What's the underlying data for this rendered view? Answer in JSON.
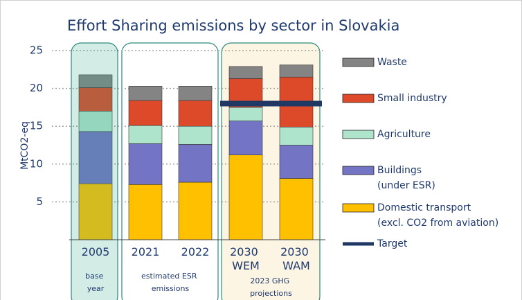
{
  "chart_data": {
    "type": "stacked_bar",
    "title": "Effort Sharing emissions by sector in Slovakia",
    "y_label": "MtCO2-eq",
    "categories": [
      "2005",
      "2021",
      "2022",
      "2030 WEM",
      "2030 WAM"
    ],
    "groups": [
      {
        "label": [
          "base",
          "year"
        ],
        "categories": [
          0
        ]
      },
      {
        "label": [
          "estimated ESR",
          "emissions"
        ],
        "categories": [
          1,
          2
        ]
      },
      {
        "label": [
          "2023 GHG",
          "projections"
        ],
        "categories": [
          3,
          4
        ]
      }
    ],
    "series": [
      {
        "name": "Domestic transport (excl. CO2 from aviation)",
        "color": "#ffc000",
        "values": [
          7.4,
          7.3,
          7.6,
          11.2,
          8.1
        ]
      },
      {
        "name": "Buildings (under ESR)",
        "color": "#7474c4",
        "values": [
          6.9,
          5.4,
          5.0,
          4.5,
          4.4
        ]
      },
      {
        "name": "Agriculture",
        "color": "#aee3cc",
        "values": [
          2.7,
          2.4,
          2.4,
          1.8,
          2.4
        ]
      },
      {
        "name": "Small industry",
        "color": "#dc4a2a",
        "values": [
          3.1,
          3.3,
          3.4,
          3.8,
          6.6
        ]
      },
      {
        "name": "Waste",
        "color": "#848484",
        "values": [
          1.7,
          1.9,
          1.9,
          1.6,
          1.6
        ]
      }
    ],
    "target": {
      "name": "Target",
      "color": "#1f3864",
      "values": [
        null,
        null,
        null,
        18.0,
        18.0
      ]
    },
    "ylim": [
      0,
      25
    ],
    "yticks": [
      5,
      10,
      15,
      20,
      25
    ],
    "grid": true
  }
}
